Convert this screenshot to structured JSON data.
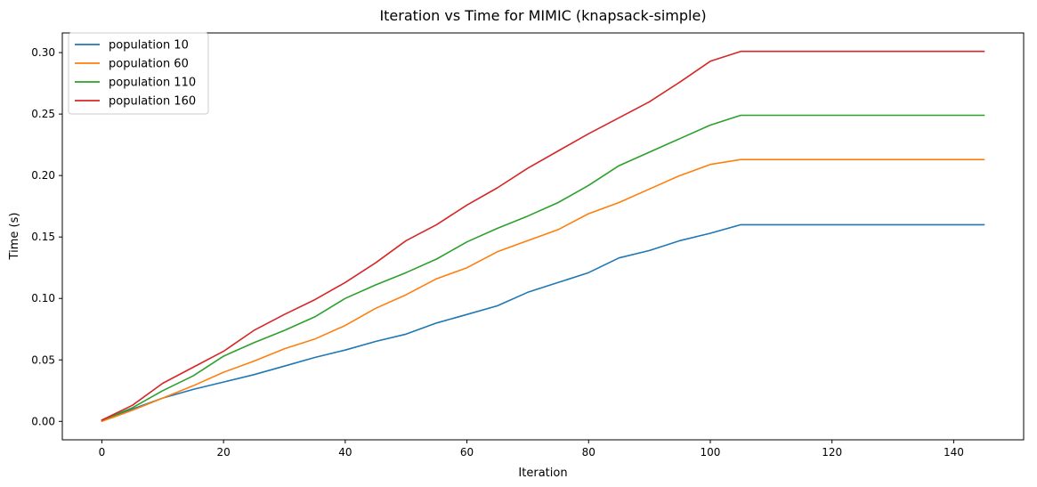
{
  "chart_data": {
    "type": "line",
    "title": "Iteration vs Time for MIMIC (knapsack-simple)",
    "xlabel": "Iteration",
    "ylabel": "Time (s)",
    "xlim": [
      -6.5,
      151.5
    ],
    "ylim": [
      -0.015,
      0.316
    ],
    "xticks": [
      0,
      20,
      40,
      60,
      80,
      100,
      120,
      140
    ],
    "xtick_labels": [
      "0",
      "20",
      "40",
      "60",
      "80",
      "100",
      "120",
      "140"
    ],
    "yticks": [
      0.0,
      0.05,
      0.1,
      0.15,
      0.2,
      0.25,
      0.3
    ],
    "ytick_labels": [
      "0.00",
      "0.05",
      "0.10",
      "0.15",
      "0.20",
      "0.25",
      "0.30"
    ],
    "grid": false,
    "legend_position": "top-left",
    "x": [
      0,
      5,
      10,
      15,
      20,
      25,
      30,
      35,
      40,
      45,
      50,
      55,
      60,
      65,
      70,
      75,
      80,
      85,
      90,
      95,
      100,
      105,
      110,
      115,
      120,
      125,
      130,
      135,
      140,
      145
    ],
    "series": [
      {
        "name": "population 10",
        "color": "#1f77b4",
        "values": [
          0.001,
          0.01,
          0.019,
          0.026,
          0.032,
          0.038,
          0.045,
          0.052,
          0.058,
          0.065,
          0.071,
          0.08,
          0.087,
          0.094,
          0.105,
          0.113,
          0.121,
          0.133,
          0.139,
          0.147,
          0.153,
          0.16,
          0.16,
          0.16,
          0.16,
          0.16,
          0.16,
          0.16,
          0.16,
          0.16
        ]
      },
      {
        "name": "population 60",
        "color": "#ff7f0e",
        "values": [
          0.0,
          0.009,
          0.019,
          0.029,
          0.04,
          0.049,
          0.059,
          0.067,
          0.078,
          0.092,
          0.103,
          0.116,
          0.125,
          0.138,
          0.147,
          0.156,
          0.169,
          0.178,
          0.189,
          0.2,
          0.209,
          0.213,
          0.213,
          0.213,
          0.213,
          0.213,
          0.213,
          0.213,
          0.213,
          0.213
        ]
      },
      {
        "name": "population 110",
        "color": "#2ca02c",
        "values": [
          0.001,
          0.011,
          0.025,
          0.037,
          0.053,
          0.064,
          0.074,
          0.085,
          0.1,
          0.111,
          0.121,
          0.132,
          0.146,
          0.157,
          0.167,
          0.178,
          0.192,
          0.208,
          0.219,
          0.23,
          0.241,
          0.249,
          0.249,
          0.249,
          0.249,
          0.249,
          0.249,
          0.249,
          0.249,
          0.249
        ]
      },
      {
        "name": "population 160",
        "color": "#d62728",
        "values": [
          0.001,
          0.013,
          0.031,
          0.044,
          0.057,
          0.074,
          0.087,
          0.099,
          0.113,
          0.129,
          0.147,
          0.16,
          0.176,
          0.19,
          0.206,
          0.22,
          0.234,
          0.247,
          0.26,
          0.276,
          0.293,
          0.301,
          0.301,
          0.301,
          0.301,
          0.301,
          0.301,
          0.301,
          0.301,
          0.301
        ]
      }
    ]
  }
}
